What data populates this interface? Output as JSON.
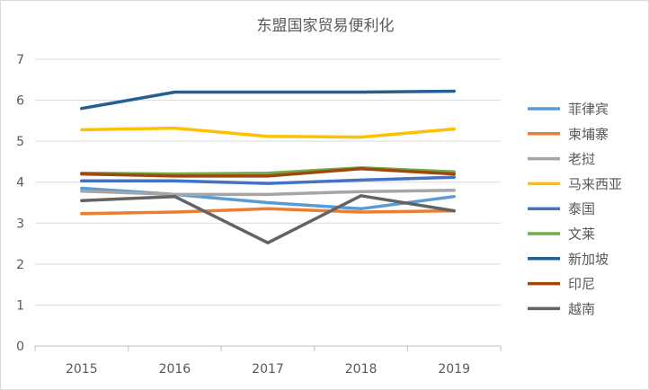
{
  "chart_data": {
    "type": "line",
    "title": "东盟国家贸易便利化",
    "xlabel": "",
    "ylabel": "",
    "categories": [
      "2015",
      "2016",
      "2017",
      "2018",
      "2019"
    ],
    "ylim": [
      0,
      7
    ],
    "yticks": [
      0,
      1,
      2,
      3,
      4,
      5,
      6,
      7
    ],
    "grid": "horizontal",
    "legend_position": "right",
    "series": [
      {
        "name": "菲律宾",
        "color": "#5B9BD5",
        "values": [
          3.85,
          3.7,
          3.5,
          3.35,
          3.65
        ]
      },
      {
        "name": "柬埔寨",
        "color": "#ED7D31",
        "values": [
          3.23,
          3.27,
          3.35,
          3.27,
          3.3
        ]
      },
      {
        "name": "老挝",
        "color": "#A5A5A5",
        "values": [
          3.78,
          3.7,
          3.7,
          3.77,
          3.8
        ]
      },
      {
        "name": "马来西亚",
        "color": "#FFC000",
        "values": [
          5.28,
          5.32,
          5.12,
          5.1,
          5.3
        ]
      },
      {
        "name": "泰国",
        "color": "#4472C4",
        "values": [
          4.03,
          4.03,
          3.97,
          4.05,
          4.12
        ]
      },
      {
        "name": "文莱",
        "color": "#70AD47",
        "values": [
          4.22,
          4.2,
          4.22,
          4.35,
          4.25
        ]
      },
      {
        "name": "新加坡",
        "color": "#255E91",
        "values": [
          5.8,
          6.2,
          6.2,
          6.2,
          6.22
        ]
      },
      {
        "name": "印尼",
        "color": "#9E480E",
        "values": [
          4.2,
          4.15,
          4.15,
          4.33,
          4.2
        ]
      },
      {
        "name": "越南",
        "color": "#636363",
        "values": [
          3.55,
          3.65,
          2.52,
          3.67,
          3.3
        ]
      }
    ]
  }
}
